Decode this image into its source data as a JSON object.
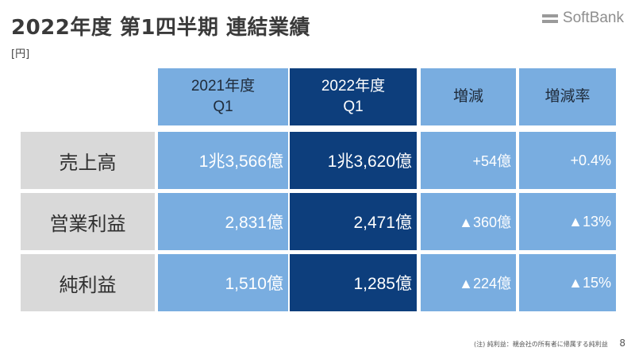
{
  "title": "2022年度 第1四半期 連結業績",
  "unit": "[円]",
  "logo": {
    "text": "SoftBank"
  },
  "columns": {
    "prev": [
      "2021年度",
      "Q1"
    ],
    "curr": [
      "2022年度",
      "Q1"
    ],
    "change": "増減",
    "rate": "増減率"
  },
  "rows": [
    {
      "label": "売上高",
      "prev": "1兆3,566億",
      "curr": "1兆3,620億",
      "change": "+54億",
      "rate": "+0.4%"
    },
    {
      "label": "営業利益",
      "prev": "2,831億",
      "curr": "2,471億",
      "change": "▲360億",
      "rate": "▲13%"
    },
    {
      "label": "純利益",
      "prev": "1,510億",
      "curr": "1,285億",
      "change": "▲224億",
      "rate": "▲15%"
    }
  ],
  "footnote": "(注) 純利益：親会社の所有者に帰属する純利益",
  "page_number": "8",
  "colors": {
    "light_blue": "#79ade0",
    "dark_blue": "#0d3e7c",
    "label_gray": "#d9d9d9"
  }
}
